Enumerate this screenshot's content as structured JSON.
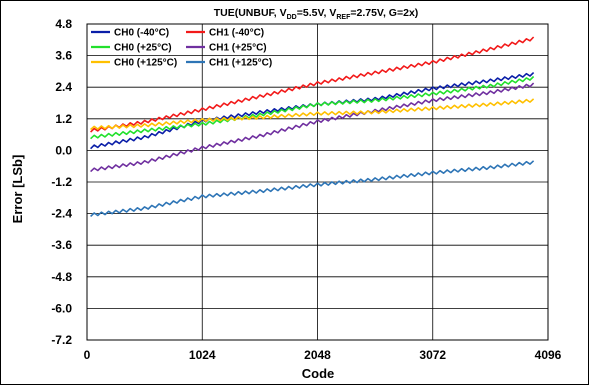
{
  "chart_data": {
    "type": "line",
    "title": {
      "prefix": "TUE(UNBUF, V",
      "sub1": "DD",
      "mid": "=5.5V, V",
      "sub2": "REF",
      "suffix": "=2.75V, G=2x)"
    },
    "xlabel": "Code",
    "ylabel": "Error [LSb]",
    "xlim": [
      0,
      4096
    ],
    "ylim": [
      -7.2,
      4.8
    ],
    "xticks": [
      "0",
      "1024",
      "2048",
      "3072",
      "4096"
    ],
    "yticks": [
      "4.8",
      "3.6",
      "2.4",
      "1.2",
      "0.0",
      "-1.2",
      "-2.4",
      "-3.6",
      "-4.8",
      "-6.0",
      "-7.2"
    ],
    "grid": true,
    "legend_position": "top-left",
    "series": [
      {
        "name": "CH0 (-40°C)",
        "color": "#0a1ea8",
        "x": [
          32,
          512,
          1024,
          1536,
          2048,
          2560,
          3072,
          3584,
          3968
        ],
        "y": [
          0.12,
          0.5,
          1.12,
          1.45,
          1.75,
          1.95,
          2.35,
          2.65,
          2.9
        ]
      },
      {
        "name": "CH1 (-40°C)",
        "color": "#f21a1a",
        "x": [
          32,
          512,
          1024,
          1536,
          2048,
          2560,
          3072,
          3584,
          3968
        ],
        "y": [
          0.75,
          1.08,
          1.55,
          2.05,
          2.55,
          2.95,
          3.35,
          3.85,
          4.25
        ]
      },
      {
        "name": "CH0 (+25°C)",
        "color": "#22e02c",
        "x": [
          32,
          512,
          1024,
          1536,
          2048,
          2560,
          3072,
          3584,
          3968
        ],
        "y": [
          0.5,
          0.75,
          1.0,
          1.35,
          1.75,
          1.9,
          2.15,
          2.45,
          2.75
        ]
      },
      {
        "name": "CH1 (+25°C)",
        "color": "#7030a0",
        "x": [
          32,
          512,
          1024,
          1536,
          2048,
          2560,
          3072,
          3584,
          3968
        ],
        "y": [
          -0.75,
          -0.45,
          0.1,
          0.55,
          1.1,
          1.5,
          1.9,
          2.2,
          2.5
        ]
      },
      {
        "name": "CH0 (+125°C)",
        "color": "#ffc000",
        "x": [
          32,
          512,
          1024,
          1536,
          2048,
          2560,
          3072,
          3584,
          3968
        ],
        "y": [
          0.85,
          0.95,
          1.15,
          1.25,
          1.4,
          1.45,
          1.6,
          1.75,
          1.9
        ]
      },
      {
        "name": "CH1 (+125°C)",
        "color": "#2e75b6",
        "x": [
          32,
          512,
          1024,
          1536,
          2048,
          2560,
          3072,
          3584,
          3968
        ],
        "y": [
          -2.45,
          -2.2,
          -1.75,
          -1.55,
          -1.3,
          -1.1,
          -0.85,
          -0.65,
          -0.45
        ]
      }
    ]
  }
}
